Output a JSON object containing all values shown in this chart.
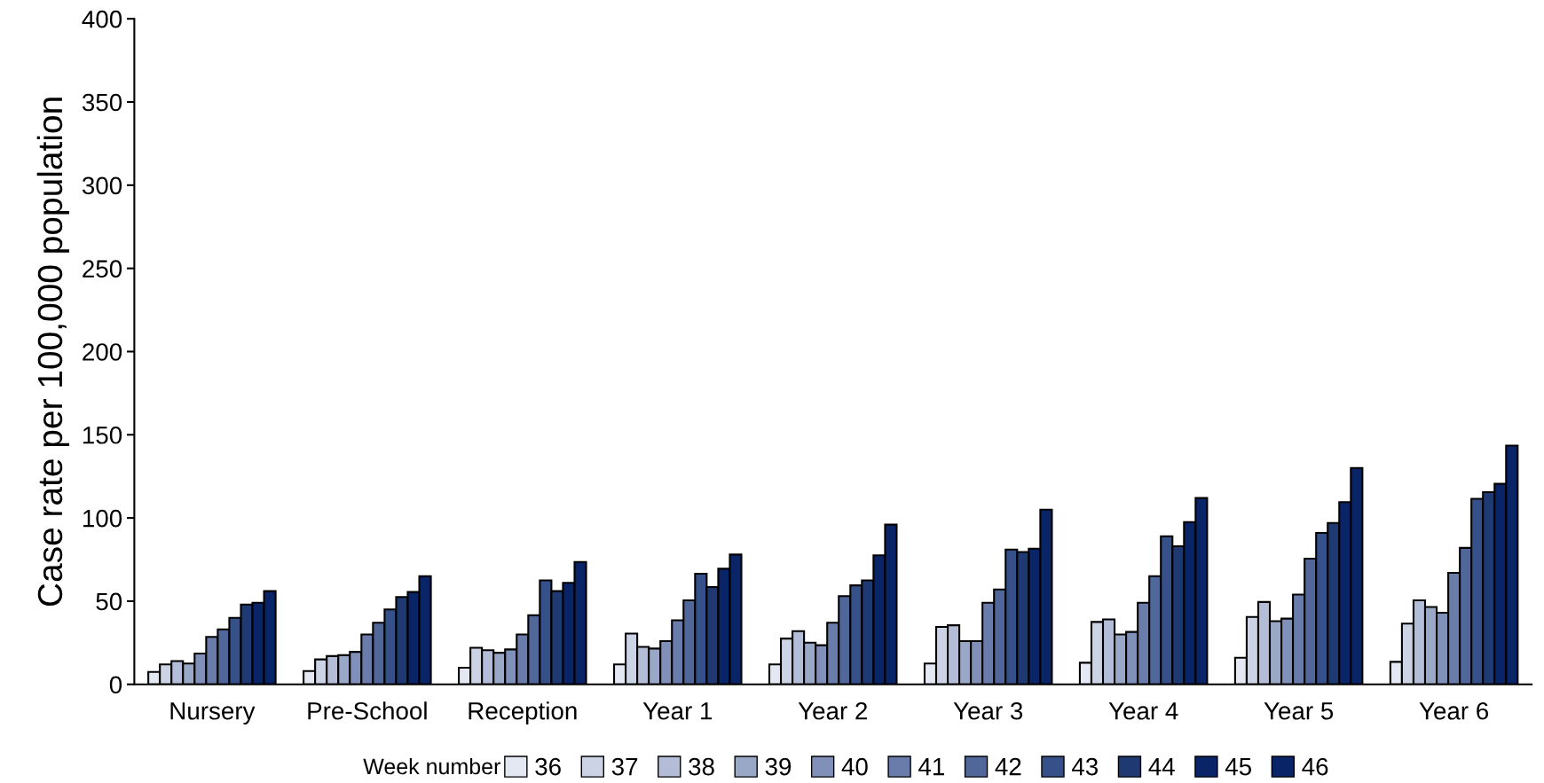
{
  "chart_data": {
    "type": "bar",
    "ylabel": "Case rate per 100,000 population",
    "legend_title": "Week number",
    "categories": [
      "Nursery",
      "Pre-School",
      "Reception",
      "Year 1",
      "Year 2",
      "Year 3",
      "Year 4",
      "Year 5",
      "Year 6"
    ],
    "ylim": [
      0,
      400
    ],
    "yticks": [
      0,
      50,
      100,
      150,
      200,
      250,
      300,
      350,
      400
    ],
    "grid": false,
    "legend": "bottom",
    "series": [
      {
        "name": "36",
        "color": "#e4e8f2",
        "values": [
          7.5,
          8,
          10,
          12,
          12,
          12.5,
          13,
          16,
          13.5
        ]
      },
      {
        "name": "37",
        "color": "#ccd3e5",
        "values": [
          12,
          15,
          22,
          30.5,
          27.5,
          34.5,
          37.5,
          40.5,
          36.5
        ]
      },
      {
        "name": "38",
        "color": "#b4bdd8",
        "values": [
          14,
          17,
          20.5,
          22.5,
          32,
          35.5,
          39,
          49.5,
          50.5
        ]
      },
      {
        "name": "39",
        "color": "#9aa8c8",
        "values": [
          12.5,
          17.5,
          19,
          21.5,
          25,
          26,
          30,
          38,
          46.5
        ]
      },
      {
        "name": "40",
        "color": "#8090b8",
        "values": [
          18.5,
          19.5,
          21,
          26,
          23.5,
          26,
          31.5,
          39.5,
          43
        ]
      },
      {
        "name": "41",
        "color": "#6a7daa",
        "values": [
          28.5,
          30,
          30,
          38.5,
          37,
          49,
          49,
          54,
          67
        ]
      },
      {
        "name": "42",
        "color": "#51679a",
        "values": [
          33,
          37,
          41.5,
          50.5,
          53,
          57,
          65,
          75.5,
          82
        ]
      },
      {
        "name": "43",
        "color": "#36508a",
        "values": [
          40,
          45,
          62.5,
          66.5,
          59.5,
          81,
          89,
          91,
          111.5
        ]
      },
      {
        "name": "44",
        "color": "#1f3a72",
        "values": [
          48,
          52.5,
          56,
          58.5,
          62.5,
          79.5,
          83,
          97,
          115.5
        ]
      },
      {
        "name": "45",
        "color": "#0a2468",
        "values": [
          49,
          55.5,
          61,
          69.5,
          77.5,
          81.5,
          97.5,
          109.5,
          120.5
        ]
      },
      {
        "name": "46",
        "color": "#0a2468",
        "values": [
          56,
          65,
          73.5,
          78,
          96,
          105,
          112,
          130,
          143.5
        ]
      }
    ]
  }
}
